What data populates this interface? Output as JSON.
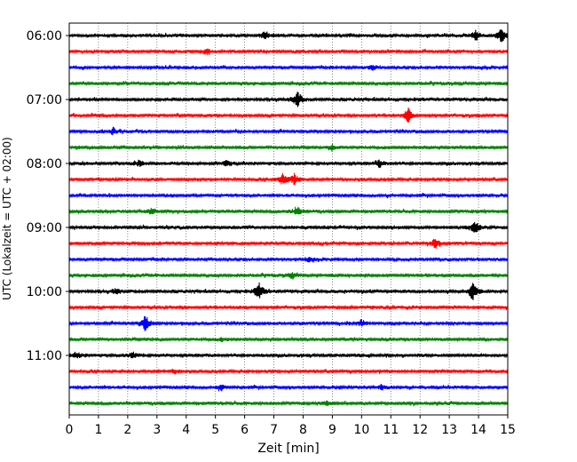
{
  "chart_data": {
    "type": "line",
    "subtype": "helicorder",
    "xlabel": "Zeit  [min]",
    "ylabel": "UTC (Lokalzeit = UTC + 02:00)",
    "xlim": [
      0,
      15
    ],
    "x_ticks": [
      "0",
      "1",
      "2",
      "3",
      "4",
      "5",
      "6",
      "7",
      "8",
      "9",
      "10",
      "11",
      "12",
      "13",
      "14",
      "15"
    ],
    "y_tick_labels": [
      "06:00",
      "07:00",
      "08:00",
      "09:00",
      "10:00",
      "11:00"
    ],
    "rows_per_hour": 4,
    "row_minutes": 15,
    "grid_x": true,
    "grid_style": "dotted vertical",
    "series": [
      {
        "row": 0,
        "time": "06:00",
        "color": "#000000",
        "events": [
          {
            "t": 6.7,
            "a": 1.0
          },
          {
            "t": 13.9,
            "a": 1.6
          },
          {
            "t": 14.8,
            "a": 2.2
          }
        ]
      },
      {
        "row": 1,
        "time": "06:15",
        "color": "#ff0000",
        "events": [
          {
            "t": 4.7,
            "a": 0.8
          }
        ]
      },
      {
        "row": 2,
        "time": "06:30",
        "color": "#0000ff",
        "events": [
          {
            "t": 10.4,
            "a": 0.7
          }
        ]
      },
      {
        "row": 3,
        "time": "06:45",
        "color": "#008000",
        "events": []
      },
      {
        "row": 4,
        "time": "07:00",
        "color": "#000000",
        "events": [
          {
            "t": 7.8,
            "a": 2.6
          }
        ]
      },
      {
        "row": 5,
        "time": "07:15",
        "color": "#ff0000",
        "events": [
          {
            "t": 11.6,
            "a": 1.9
          }
        ]
      },
      {
        "row": 6,
        "time": "07:30",
        "color": "#0000ff",
        "events": [
          {
            "t": 1.5,
            "a": 0.9
          }
        ]
      },
      {
        "row": 7,
        "time": "07:45",
        "color": "#008000",
        "events": [
          {
            "t": 9.0,
            "a": 0.9
          }
        ]
      },
      {
        "row": 8,
        "time": "08:00",
        "color": "#000000",
        "events": [
          {
            "t": 2.4,
            "a": 0.8
          },
          {
            "t": 5.4,
            "a": 1.0
          },
          {
            "t": 10.6,
            "a": 1.1
          }
        ]
      },
      {
        "row": 9,
        "time": "08:15",
        "color": "#ff0000",
        "events": [
          {
            "t": 7.3,
            "a": 1.4
          },
          {
            "t": 7.7,
            "a": 1.6
          }
        ]
      },
      {
        "row": 10,
        "time": "08:30",
        "color": "#0000ff",
        "events": []
      },
      {
        "row": 11,
        "time": "08:45",
        "color": "#008000",
        "events": [
          {
            "t": 2.8,
            "a": 0.8
          },
          {
            "t": 7.8,
            "a": 1.3
          }
        ]
      },
      {
        "row": 12,
        "time": "09:00",
        "color": "#000000",
        "events": [
          {
            "t": 13.9,
            "a": 1.7
          }
        ]
      },
      {
        "row": 13,
        "time": "09:15",
        "color": "#ff0000",
        "events": [
          {
            "t": 12.5,
            "a": 1.3
          }
        ]
      },
      {
        "row": 14,
        "time": "09:30",
        "color": "#0000ff",
        "events": [
          {
            "t": 8.2,
            "a": 0.6
          }
        ]
      },
      {
        "row": 15,
        "time": "09:45",
        "color": "#008000",
        "events": [
          {
            "t": 7.6,
            "a": 0.9
          }
        ]
      },
      {
        "row": 16,
        "time": "10:00",
        "color": "#000000",
        "events": [
          {
            "t": 1.6,
            "a": 0.8
          },
          {
            "t": 6.5,
            "a": 2.4
          },
          {
            "t": 13.8,
            "a": 2.6
          }
        ]
      },
      {
        "row": 17,
        "time": "10:15",
        "color": "#ff0000",
        "events": []
      },
      {
        "row": 18,
        "time": "10:30",
        "color": "#0000ff",
        "events": [
          {
            "t": 2.6,
            "a": 2.4
          },
          {
            "t": 10.0,
            "a": 0.8
          }
        ]
      },
      {
        "row": 19,
        "time": "10:45",
        "color": "#008000",
        "events": [
          {
            "t": 5.2,
            "a": 0.6
          }
        ]
      },
      {
        "row": 20,
        "time": "11:00",
        "color": "#000000",
        "events": [
          {
            "t": 0.3,
            "a": 0.8
          },
          {
            "t": 2.2,
            "a": 0.8
          }
        ]
      },
      {
        "row": 21,
        "time": "11:15",
        "color": "#ff0000",
        "events": [
          {
            "t": 3.6,
            "a": 0.6
          }
        ]
      },
      {
        "row": 22,
        "time": "11:30",
        "color": "#0000ff",
        "events": [
          {
            "t": 5.2,
            "a": 0.7
          },
          {
            "t": 10.7,
            "a": 0.6
          }
        ]
      },
      {
        "row": 23,
        "time": "11:45",
        "color": "#008000",
        "events": [
          {
            "t": 8.8,
            "a": 0.6
          }
        ]
      }
    ]
  }
}
